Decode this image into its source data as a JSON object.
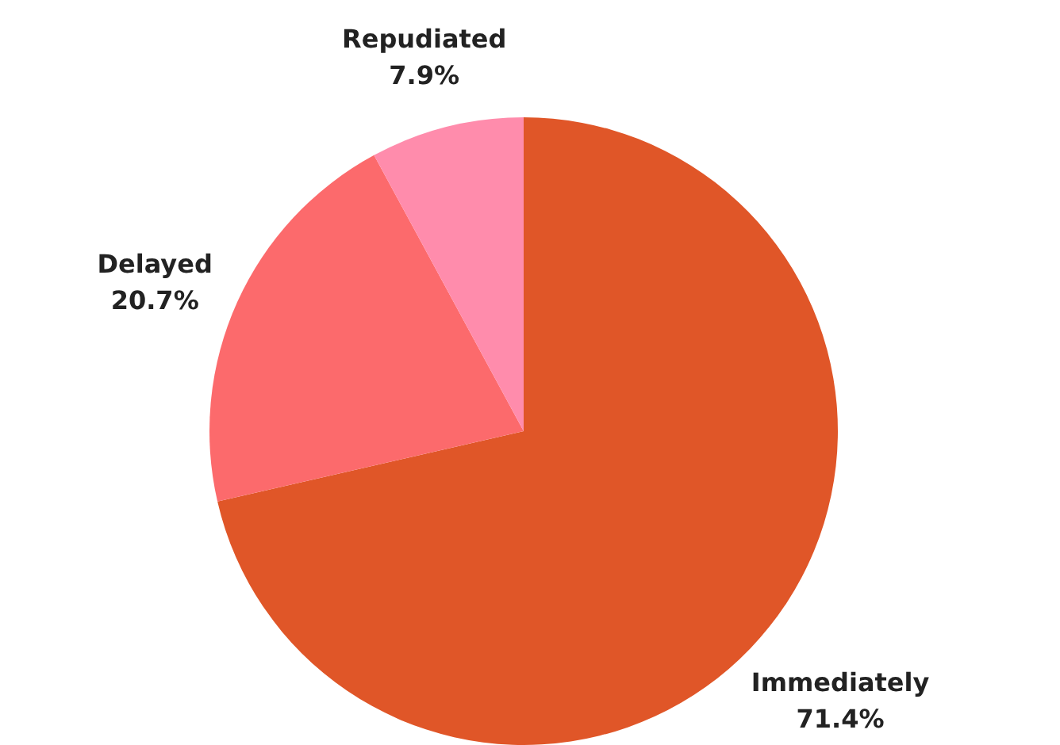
{
  "chart_data": {
    "type": "pie",
    "categories": [
      "Immediately",
      "Delayed",
      "Repudiated"
    ],
    "values": [
      71.4,
      20.7,
      7.9
    ],
    "colors": [
      "#e05628",
      "#fc6a6c",
      "#ff8cac"
    ],
    "value_labels": [
      "71.4%",
      "20.7%",
      "7.9%"
    ]
  }
}
